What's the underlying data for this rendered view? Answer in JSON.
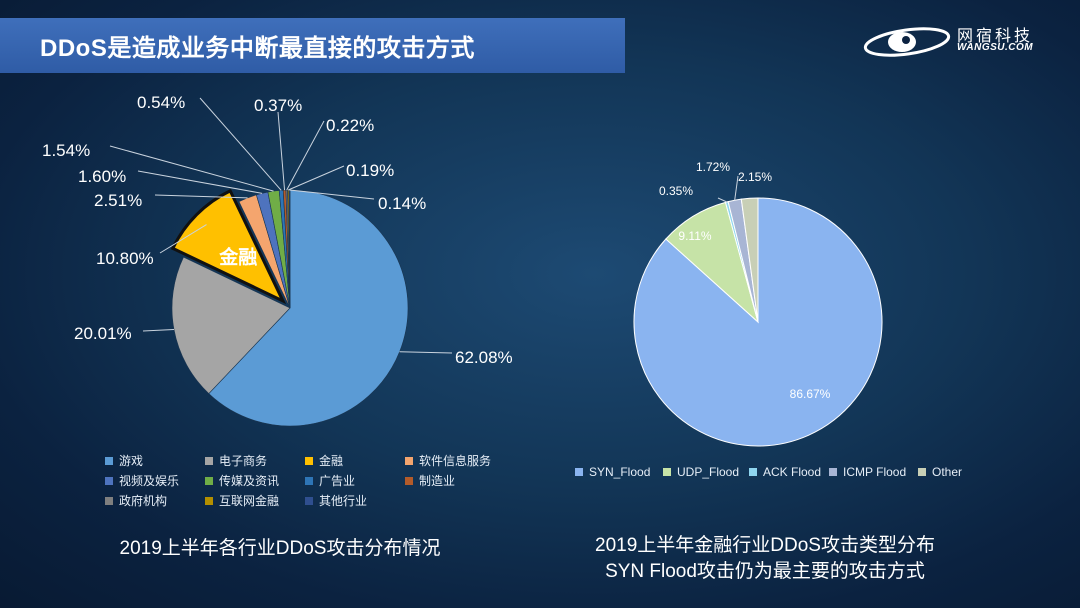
{
  "header": {
    "title": "DDoS是造成业务中断最直接的攻击方式"
  },
  "logo": {
    "cn": "网宿科技",
    "en": "WANGSU.COM"
  },
  "chart_data": [
    {
      "type": "pie",
      "caption": "2019上半年各行业DDoS攻击分布情况",
      "highlight": {
        "label": "金融",
        "category": "金融"
      },
      "categories": [
        "游戏",
        "电子商务",
        "金融",
        "软件信息服务",
        "视频及娱乐",
        "传媒及资讯",
        "广告业",
        "制造业",
        "政府机构",
        "互联网金融",
        "其他行业"
      ],
      "values": [
        62.08,
        20.01,
        10.8,
        2.51,
        1.6,
        1.54,
        0.54,
        0.37,
        0.22,
        0.19,
        0.14
      ],
      "labels": [
        "62.08%",
        "20.01%",
        "10.80%",
        "2.51%",
        "1.60%",
        "1.54%",
        "0.54%",
        "0.37%",
        "0.22%",
        "0.19%",
        "0.14%"
      ],
      "colors": [
        "#5b9bd5",
        "#a5a5a5",
        "#ffc000",
        "#f4a56e",
        "#4e73be",
        "#70ad47",
        "#2e75b6",
        "#b35b2a",
        "#7f7f7f",
        "#b38f00",
        "#2f4f8f"
      ],
      "legend_position": "bottom"
    },
    {
      "type": "pie",
      "caption": [
        "2019上半年金融行业DDoS攻击类型分布",
        "SYN Flood攻击仍为最主要的攻击方式"
      ],
      "categories": [
        "SYN_Flood",
        "UDP_Flood",
        "ACK Flood",
        "ICMP Flood",
        "Other"
      ],
      "values": [
        86.67,
        9.11,
        0.35,
        1.72,
        2.15
      ],
      "labels": [
        "86.67%",
        "9.11%",
        "0.35%",
        "1.72%",
        "2.15%"
      ],
      "colors": [
        "#8ab4f0",
        "#c6e3a7",
        "#8fd6ef",
        "#a8b5d4",
        "#c8cfb6"
      ],
      "legend_position": "bottom"
    }
  ]
}
